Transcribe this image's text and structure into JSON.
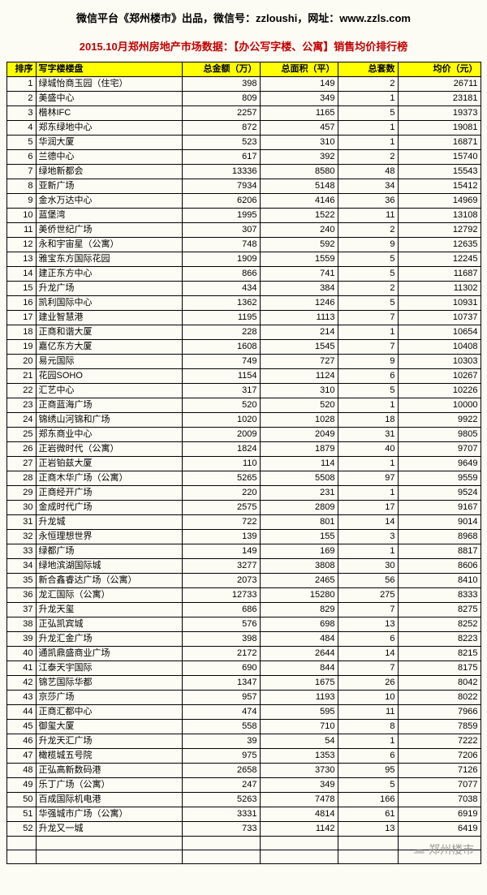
{
  "header": {
    "top": "微信平台《郑州楼市》出品，微信号：zzloushi，网址：www.zzls.com",
    "sub": "2015.10月郑州房地产市场数据：【办公写字楼、公寓】销售均价排行榜"
  },
  "table": {
    "columns": [
      "排序",
      "写字楼楼盘",
      "总金额（万）",
      "总面积（平）",
      "总套数",
      "均价（元）"
    ],
    "column_keys": [
      "rank",
      "name",
      "amount",
      "area",
      "count",
      "price"
    ],
    "col_classes": [
      "col-rank",
      "col-name",
      "col-amt",
      "col-area",
      "col-cnt",
      "col-price"
    ],
    "header_bg": "#ffff00",
    "border_color": "#000000",
    "rows": [
      {
        "rank": 1,
        "name": "绿城怡商玉园（住宅）",
        "amount": 398,
        "area": 149,
        "count": 2,
        "price": 26711
      },
      {
        "rank": 2,
        "name": "美盛中心",
        "amount": 809,
        "area": 349,
        "count": 1,
        "price": 23181
      },
      {
        "rank": 3,
        "name": "楷林IFC",
        "amount": 2257,
        "area": 1165,
        "count": 5,
        "price": 19373
      },
      {
        "rank": 4,
        "name": "郑东绿地中心",
        "amount": 872,
        "area": 457,
        "count": 1,
        "price": 19081
      },
      {
        "rank": 5,
        "name": "华润大厦",
        "amount": 523,
        "area": 310,
        "count": 1,
        "price": 16871
      },
      {
        "rank": 6,
        "name": "兰德中心",
        "amount": 617,
        "area": 392,
        "count": 2,
        "price": 15740
      },
      {
        "rank": 7,
        "name": "绿地新都会",
        "amount": 13336,
        "area": 8580,
        "count": 48,
        "price": 15543
      },
      {
        "rank": 8,
        "name": "亚新广场",
        "amount": 7934,
        "area": 5148,
        "count": 34,
        "price": 15412
      },
      {
        "rank": 9,
        "name": "金水万达中心",
        "amount": 6206,
        "area": 4146,
        "count": 36,
        "price": 14969
      },
      {
        "rank": 10,
        "name": "蓝堡湾",
        "amount": 1995,
        "area": 1522,
        "count": 11,
        "price": 13108
      },
      {
        "rank": 11,
        "name": "美侨世纪广场",
        "amount": 307,
        "area": 240,
        "count": 2,
        "price": 12792
      },
      {
        "rank": 12,
        "name": "永和宇宙星（公寓）",
        "amount": 748,
        "area": 592,
        "count": 9,
        "price": 12635
      },
      {
        "rank": 13,
        "name": "雅宝东方国际花园",
        "amount": 1909,
        "area": 1559,
        "count": 5,
        "price": 12245
      },
      {
        "rank": 14,
        "name": "建正东方中心",
        "amount": 866,
        "area": 741,
        "count": 5,
        "price": 11687
      },
      {
        "rank": 15,
        "name": "升龙广场",
        "amount": 434,
        "area": 384,
        "count": 2,
        "price": 11302
      },
      {
        "rank": 16,
        "name": "凯利国际中心",
        "amount": 1362,
        "area": 1246,
        "count": 5,
        "price": 10931
      },
      {
        "rank": 17,
        "name": "建业智慧港",
        "amount": 1195,
        "area": 1113,
        "count": 7,
        "price": 10737
      },
      {
        "rank": 18,
        "name": "正商和谐大厦",
        "amount": 228,
        "area": 214,
        "count": 1,
        "price": 10654
      },
      {
        "rank": 19,
        "name": "嘉亿东方大厦",
        "amount": 1608,
        "area": 1545,
        "count": 7,
        "price": 10408
      },
      {
        "rank": 20,
        "name": "易元国际",
        "amount": 749,
        "area": 727,
        "count": 9,
        "price": 10303
      },
      {
        "rank": 21,
        "name": "花园SOHO",
        "amount": 1154,
        "area": 1124,
        "count": 6,
        "price": 10267
      },
      {
        "rank": 22,
        "name": "汇艺中心",
        "amount": 317,
        "area": 310,
        "count": 5,
        "price": 10226
      },
      {
        "rank": 23,
        "name": "正商蓝海广场",
        "amount": 520,
        "area": 520,
        "count": 1,
        "price": 10000
      },
      {
        "rank": 24,
        "name": "锦绣山河锦和广场",
        "amount": 1020,
        "area": 1028,
        "count": 18,
        "price": 9922
      },
      {
        "rank": 25,
        "name": "郑东商业中心",
        "amount": 2009,
        "area": 2049,
        "count": 31,
        "price": 9805
      },
      {
        "rank": 26,
        "name": "正岩微时代（公寓）",
        "amount": 1824,
        "area": 1879,
        "count": 40,
        "price": 9707
      },
      {
        "rank": 27,
        "name": "正岩铂兹大厦",
        "amount": 110,
        "area": 114,
        "count": 1,
        "price": 9649
      },
      {
        "rank": 28,
        "name": "正商木华广场（公寓）",
        "amount": 5265,
        "area": 5508,
        "count": 97,
        "price": 9559
      },
      {
        "rank": 29,
        "name": "正商经开广场",
        "amount": 220,
        "area": 231,
        "count": 1,
        "price": 9524
      },
      {
        "rank": 30,
        "name": "金成时代广场",
        "amount": 2575,
        "area": 2809,
        "count": 17,
        "price": 9167
      },
      {
        "rank": 31,
        "name": "升龙城",
        "amount": 722,
        "area": 801,
        "count": 14,
        "price": 9014
      },
      {
        "rank": 32,
        "name": "永恒理想世界",
        "amount": 139,
        "area": 155,
        "count": 3,
        "price": 8968
      },
      {
        "rank": 33,
        "name": "绿都广场",
        "amount": 149,
        "area": 169,
        "count": 1,
        "price": 8817
      },
      {
        "rank": 34,
        "name": "绿地滨湖国际城",
        "amount": 3277,
        "area": 3808,
        "count": 30,
        "price": 8606
      },
      {
        "rank": 35,
        "name": "新合鑫睿达广场（公寓）",
        "amount": 2073,
        "area": 2465,
        "count": 56,
        "price": 8410
      },
      {
        "rank": 36,
        "name": "龙汇国际（公寓）",
        "amount": 12733,
        "area": 15280,
        "count": 275,
        "price": 8333
      },
      {
        "rank": 37,
        "name": "升龙天玺",
        "amount": 686,
        "area": 829,
        "count": 7,
        "price": 8275
      },
      {
        "rank": 38,
        "name": "正弘凯宾城",
        "amount": 576,
        "area": 698,
        "count": 13,
        "price": 8252
      },
      {
        "rank": 39,
        "name": "升龙汇金广场",
        "amount": 398,
        "area": 484,
        "count": 6,
        "price": 8223
      },
      {
        "rank": 40,
        "name": "通凯鼎盛商业广场",
        "amount": 2172,
        "area": 2644,
        "count": 14,
        "price": 8215
      },
      {
        "rank": 41,
        "name": "江泰天宇国际",
        "amount": 690,
        "area": 844,
        "count": 7,
        "price": 8175
      },
      {
        "rank": 42,
        "name": "锦艺国际华都",
        "amount": 1347,
        "area": 1675,
        "count": 26,
        "price": 8042
      },
      {
        "rank": 43,
        "name": "京莎广场",
        "amount": 957,
        "area": 1193,
        "count": 10,
        "price": 8022
      },
      {
        "rank": 44,
        "name": "正商汇都中心",
        "amount": 474,
        "area": 595,
        "count": 11,
        "price": 7966
      },
      {
        "rank": 45,
        "name": "御玺大厦",
        "amount": 558,
        "area": 710,
        "count": 8,
        "price": 7859
      },
      {
        "rank": 46,
        "name": "升龙天汇广场",
        "amount": 39,
        "area": 54,
        "count": 1,
        "price": 7222
      },
      {
        "rank": 47,
        "name": "橄榄城五号院",
        "amount": 975,
        "area": 1353,
        "count": 6,
        "price": 7206
      },
      {
        "rank": 48,
        "name": "正弘高新数码港",
        "amount": 2658,
        "area": 3730,
        "count": 95,
        "price": 7126
      },
      {
        "rank": 49,
        "name": "乐丁广场（公寓）",
        "amount": 247,
        "area": 349,
        "count": 5,
        "price": 7077
      },
      {
        "rank": 50,
        "name": "百成国际机电港",
        "amount": 5263,
        "area": 7478,
        "count": 166,
        "price": 7038
      },
      {
        "rank": 51,
        "name": "华强城市广场（公寓）",
        "amount": 3331,
        "area": 4814,
        "count": 61,
        "price": 6919
      },
      {
        "rank": 52,
        "name": "升龙又一城",
        "amount": 733,
        "area": 1142,
        "count": 13,
        "price": 6419
      }
    ],
    "trailing_empty_rows": 2
  },
  "watermark": {
    "text": "郑州楼市"
  }
}
